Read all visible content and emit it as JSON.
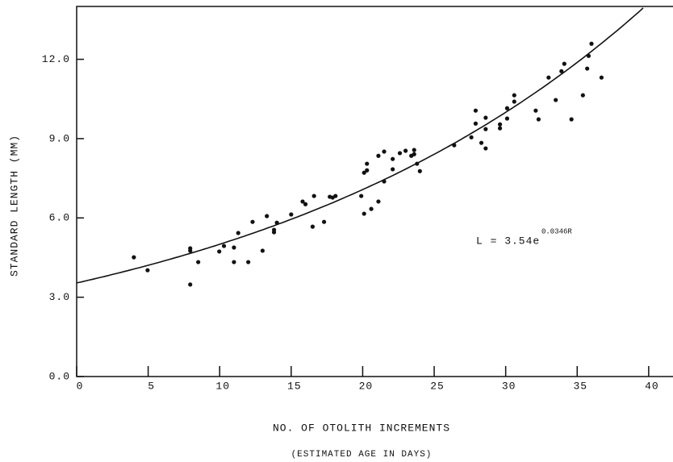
{
  "chart_data": {
    "type": "scatter",
    "xlabel": "NO. OF OTOLITH INCREMENTS",
    "xlabel2": "(ESTIMATED AGE IN DAYS)",
    "ylabel": "STANDARD LENGTH (MM)",
    "color": "#111111",
    "xlim": [
      0,
      41.7
    ],
    "ylim": [
      0,
      14
    ],
    "xticks": [
      0,
      5,
      10,
      15,
      20,
      25,
      30,
      35,
      40
    ],
    "yticks": [
      {
        "value": 0,
        "label": "0.0"
      },
      {
        "value": 3,
        "label": "3.0"
      },
      {
        "value": 6,
        "label": "6.0"
      },
      {
        "value": 9,
        "label": "9.0"
      },
      {
        "value": 12,
        "label": "12.0"
      }
    ],
    "fit": {
      "label": "L = 3.54e",
      "exponent_label": "0.0346R",
      "a": 3.54,
      "b": 0.0346
    },
    "x": [
      4.0,
      4.96,
      7.94,
      7.94,
      7.94,
      8.5,
      9.97,
      10.3,
      11.0,
      11.0,
      11.3,
      12.0,
      12.3,
      13.0,
      13.3,
      13.8,
      13.8,
      14.0,
      15.0,
      15.8,
      16.0,
      16.5,
      16.6,
      17.3,
      17.7,
      17.9,
      18.1,
      19.9,
      20.1,
      20.1,
      20.3,
      20.3,
      20.6,
      21.1,
      21.1,
      21.5,
      21.5,
      22.1,
      22.1,
      22.6,
      23.0,
      23.4,
      23.6,
      23.6,
      23.8,
      24.0,
      26.4,
      27.6,
      27.9,
      27.9,
      28.3,
      28.6,
      28.6,
      28.6,
      29.6,
      29.6,
      30.1,
      30.1,
      30.6,
      30.6,
      32.1,
      32.3,
      33.0,
      33.5,
      33.9,
      34.1,
      34.6,
      35.4,
      35.7,
      35.8,
      36.0,
      36.7
    ],
    "values": [
      4.51,
      4.02,
      4.85,
      4.76,
      3.48,
      4.33,
      4.73,
      4.94,
      4.88,
      4.33,
      5.43,
      4.33,
      5.85,
      4.76,
      6.07,
      5.55,
      5.46,
      5.82,
      6.13,
      6.62,
      6.52,
      5.67,
      6.83,
      5.85,
      6.8,
      6.77,
      6.83,
      6.83,
      7.71,
      6.16,
      7.8,
      8.05,
      6.34,
      8.35,
      6.62,
      7.38,
      8.51,
      8.23,
      7.84,
      8.45,
      8.54,
      8.35,
      8.57,
      8.41,
      8.05,
      7.77,
      8.75,
      9.05,
      10.06,
      9.57,
      8.84,
      9.79,
      9.36,
      8.63,
      9.54,
      9.39,
      10.15,
      9.76,
      10.64,
      10.4,
      10.06,
      9.73,
      11.31,
      10.46,
      11.55,
      11.83,
      9.73,
      10.64,
      11.65,
      12.13,
      12.59,
      11.31
    ]
  }
}
